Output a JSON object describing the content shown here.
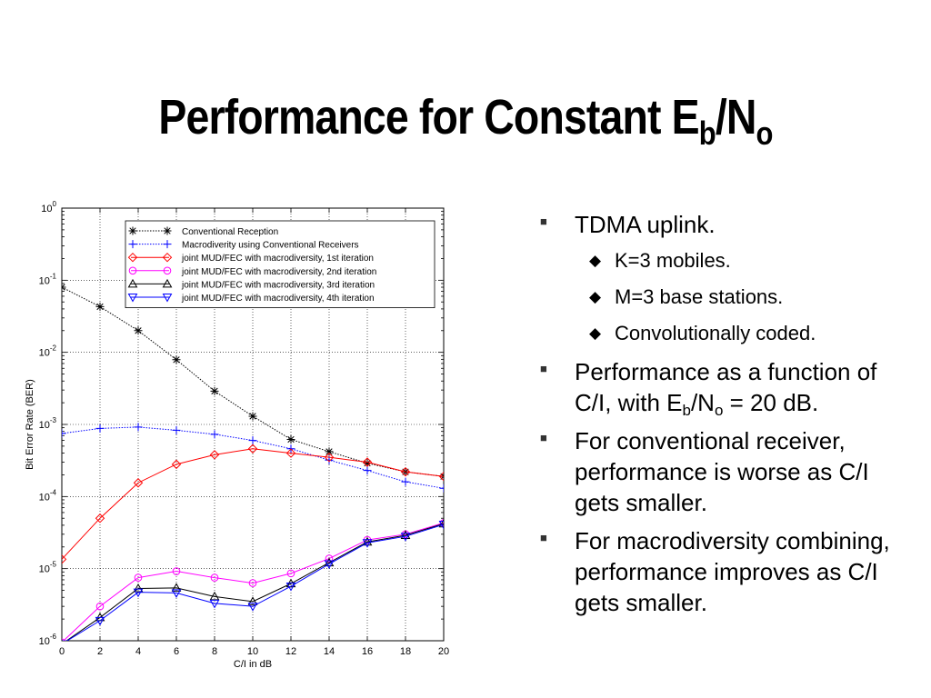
{
  "slide": {
    "title_main": "Performance for Constant E",
    "title_sub1": "b",
    "title_mid": "/N",
    "title_sub2": "o"
  },
  "bullets": {
    "b1": "TDMA uplink.",
    "b1_sub": [
      "K=3 mobiles.",
      "M=3 base stations.",
      "Convolutionally coded."
    ],
    "b2_a": "Performance as a function of C/I, with E",
    "b2_s1": "b",
    "b2_b": "/N",
    "b2_s2": "o",
    "b2_c": " = 20 dB.",
    "b3": "For conventional receiver, performance is worse as C/I gets smaller.",
    "b4": "For macrodiversity combining, performance improves as C/I gets smaller.",
    "marker_l1": "■",
    "marker_l2": "◆"
  },
  "chart_data": {
    "type": "line",
    "xlabel": "C/I in dB",
    "ylabel": "Bit Error Rate (BER)",
    "xlim": [
      0,
      20
    ],
    "ylim": [
      1e-06,
      1
    ],
    "yscale": "log",
    "grid": true,
    "legend_position": "top-right",
    "x_ticks": [
      "0",
      "2",
      "4",
      "6",
      "8",
      "10",
      "12",
      "14",
      "16",
      "18",
      "20"
    ],
    "y_ticks": [
      {
        "base": "10",
        "exp": "0"
      },
      {
        "base": "10",
        "exp": "-1"
      },
      {
        "base": "10",
        "exp": "-2"
      },
      {
        "base": "10",
        "exp": "-3"
      },
      {
        "base": "10",
        "exp": "-4"
      },
      {
        "base": "10",
        "exp": "-5"
      },
      {
        "base": "10",
        "exp": "-6"
      }
    ],
    "x": [
      0,
      2,
      4,
      6,
      8,
      10,
      12,
      14,
      16,
      18,
      20
    ],
    "series": [
      {
        "name": "Conventional Reception",
        "marker": "star",
        "style": "dotted",
        "color": "#000000",
        "values": [
          0.08,
          0.043,
          0.02,
          0.0079,
          0.0029,
          0.0013,
          0.00062,
          0.00042,
          0.00029,
          0.00022,
          0.00019
        ]
      },
      {
        "name": "Macrodiverity using Conventional Receivers",
        "marker": "plus",
        "style": "dotted",
        "color": "#0000ff",
        "values": [
          0.00075,
          0.00088,
          0.00092,
          0.00083,
          0.00073,
          0.0006,
          0.00046,
          0.00032,
          0.00023,
          0.00016,
          0.00013
        ]
      },
      {
        "name": "joint MUD/FEC with macrodiversity, 1st iteration",
        "marker": "diamond",
        "style": "solid",
        "color": "#ff0000",
        "values": [
          1.35e-05,
          5e-05,
          0.000155,
          0.00028,
          0.00038,
          0.00046,
          0.0004,
          0.00035,
          0.0003,
          0.00022,
          0.00019
        ]
      },
      {
        "name": "joint MUD/FEC with macrodiversity, 2nd iteration",
        "marker": "circle",
        "style": "solid",
        "color": "#ff00ff",
        "values": [
          9.5e-07,
          3e-06,
          7.5e-06,
          9.2e-06,
          7.5e-06,
          6.3e-06,
          8.6e-06,
          1.38e-05,
          2.5e-05,
          3e-05,
          4.3e-05
        ]
      },
      {
        "name": "joint MUD/FEC with macrodiversity, 3rd iteration",
        "marker": "triangle-up",
        "style": "solid",
        "color": "#000000",
        "values": [
          9e-07,
          2.1e-06,
          5.3e-06,
          5.4e-06,
          4.1e-06,
          3.5e-06,
          6.2e-06,
          1.21e-05,
          2.35e-05,
          2.9e-05,
          4.2e-05
        ]
      },
      {
        "name": "joint MUD/FEC with macrodiversity, 4th iteration",
        "marker": "triangle-down",
        "style": "solid",
        "color": "#0000ff",
        "values": [
          9e-07,
          1.9e-06,
          4.7e-06,
          4.6e-06,
          3.3e-06,
          3e-06,
          5.7e-06,
          1.16e-05,
          2.28e-05,
          2.8e-05,
          4.1e-05
        ]
      }
    ]
  }
}
